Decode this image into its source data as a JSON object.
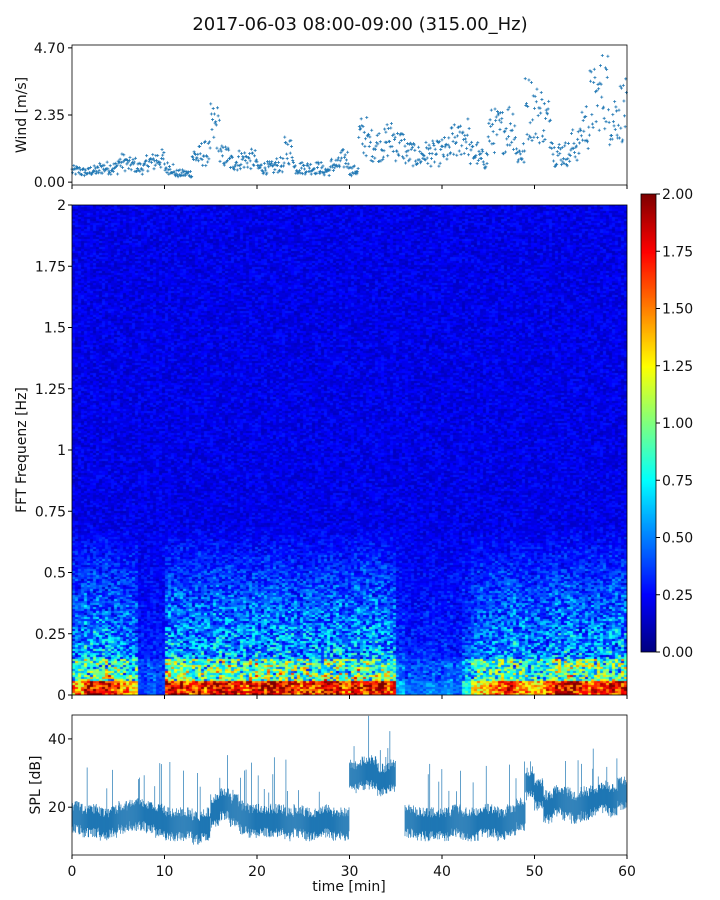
{
  "title": "2017-06-03 08:00-09:00 (315.00_Hz)",
  "chart_data": [
    {
      "type": "scatter",
      "name": "wind",
      "ylabel": "Wind [m/s]",
      "ylim": [
        -0.1,
        4.8
      ],
      "yticks": [
        "0.00",
        "2.35",
        "4.70"
      ],
      "ytick_values": [
        0,
        2.35,
        4.7
      ],
      "xlim": [
        0,
        60
      ],
      "minute_mean": [
        0.4,
        0.35,
        0.4,
        0.5,
        0.5,
        0.7,
        0.6,
        0.5,
        0.7,
        0.8,
        0.5,
        0.3,
        0.3,
        0.9,
        1.0,
        1.9,
        0.9,
        0.7,
        0.8,
        0.8,
        0.5,
        0.5,
        0.6,
        1.1,
        0.5,
        0.5,
        0.5,
        0.4,
        0.6,
        0.8,
        0.4,
        1.6,
        1.3,
        1.3,
        1.5,
        1.3,
        1.0,
        0.9,
        1.0,
        1.0,
        1.1,
        1.4,
        1.6,
        1.0,
        0.8,
        1.8,
        1.8,
        2.0,
        1.0,
        2.6,
        2.4,
        2.1,
        1.0,
        1.0,
        1.3,
        2.0,
        2.8,
        3.2,
        2.3,
        2.5
      ],
      "color": "#1f77b4"
    },
    {
      "type": "heatmap",
      "name": "spectrogram",
      "ylabel": "FFT Frequenz [Hz]",
      "ylim": [
        0,
        2
      ],
      "yticks": [
        "0",
        "0.25",
        "0.5",
        "0.75",
        "1",
        "1.25",
        "1.5",
        "1.75",
        "2"
      ],
      "xlim": [
        0,
        60
      ],
      "low_band_level_per_minute": [
        1.6,
        2.0,
        2.0,
        2.0,
        1.8,
        1.6,
        1.5,
        0.4,
        0.5,
        0.4,
        2.0,
        2.0,
        1.8,
        1.9,
        1.8,
        2.0,
        2.0,
        1.9,
        1.8,
        2.0,
        1.9,
        2.0,
        2.0,
        1.9,
        1.8,
        1.9,
        1.8,
        2.0,
        2.0,
        1.7,
        2.0,
        1.9,
        2.0,
        2.0,
        1.8,
        0.7,
        0.5,
        0.5,
        0.6,
        0.5,
        0.6,
        0.5,
        0.9,
        1.4,
        1.5,
        1.6,
        1.7,
        2.0,
        1.6,
        1.5,
        1.5,
        1.8,
        2.0,
        2.0,
        1.9,
        1.7,
        1.8,
        1.8,
        1.9,
        2.0
      ],
      "colorbar": {
        "range": [
          0,
          2
        ],
        "ticks": [
          "0.00",
          "0.25",
          "0.50",
          "0.75",
          "1.00",
          "1.25",
          "1.50",
          "1.75",
          "2.00"
        ]
      }
    },
    {
      "type": "line",
      "name": "spl",
      "ylabel": "SPL [dB]",
      "xlabel": "time [min]",
      "ylim": [
        6,
        47
      ],
      "yticks": [
        "20",
        "40"
      ],
      "ytick_values": [
        20,
        40
      ],
      "xlim": [
        0,
        60
      ],
      "xticks": [
        "0",
        "10",
        "20",
        "30",
        "40",
        "50",
        "60"
      ],
      "minute_mean": [
        17,
        16,
        16,
        15,
        16,
        17,
        18,
        18,
        17,
        16,
        15,
        15,
        15,
        14,
        15,
        19,
        21,
        19,
        17,
        16,
        16,
        16,
        16,
        15,
        16,
        15,
        15,
        16,
        15,
        15,
        29,
        30,
        30,
        28,
        29,
        null,
        16,
        15,
        15,
        15,
        15,
        16,
        15,
        15,
        16,
        16,
        15,
        16,
        18,
        27,
        24,
        20,
        22,
        21,
        20,
        21,
        22,
        23,
        22,
        24
      ],
      "color": "#1f77b4"
    }
  ]
}
